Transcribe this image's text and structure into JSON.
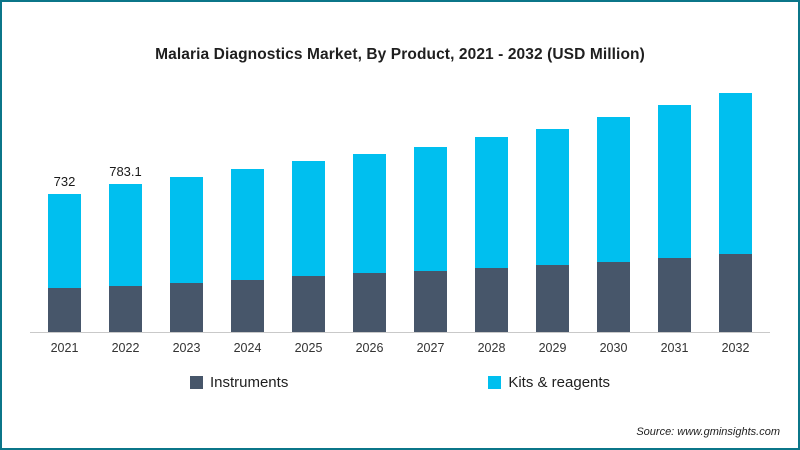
{
  "page": {
    "border_color": "#0b7689",
    "background": "#ffffff"
  },
  "chart_data": {
    "type": "bar",
    "stacked": true,
    "title": "Malaria Diagnostics Market, By Product, 2021 - 2032 (USD Million)",
    "categories": [
      "2021",
      "2022",
      "2023",
      "2024",
      "2025",
      "2026",
      "2027",
      "2028",
      "2029",
      "2030",
      "2031",
      "2032"
    ],
    "series": [
      {
        "name": "Instruments",
        "color": "#47566a",
        "values": [
          230,
          245,
          260,
          275,
          295,
          310,
          325,
          340,
          355,
          372,
          390,
          410
        ]
      },
      {
        "name": "Kits & reagents",
        "color": "#00bfef",
        "values": [
          502,
          538.1,
          560,
          585,
          610,
          630,
          655,
          690,
          720,
          763,
          810,
          855
        ]
      }
    ],
    "totals": [
      732,
      783.1,
      820,
      860,
      905,
      940,
      980,
      1030,
      1075,
      1135,
      1200,
      1265
    ],
    "data_labels": [
      "732",
      "783.1",
      "",
      "",
      "",
      "",
      "",
      "",
      "",
      "",
      "",
      ""
    ],
    "xlabel": "",
    "ylabel": "",
    "ylim": [
      0,
      1300
    ],
    "grid": false,
    "legend_position": "bottom"
  },
  "source": {
    "label": "Source: www.gminsights.com"
  }
}
